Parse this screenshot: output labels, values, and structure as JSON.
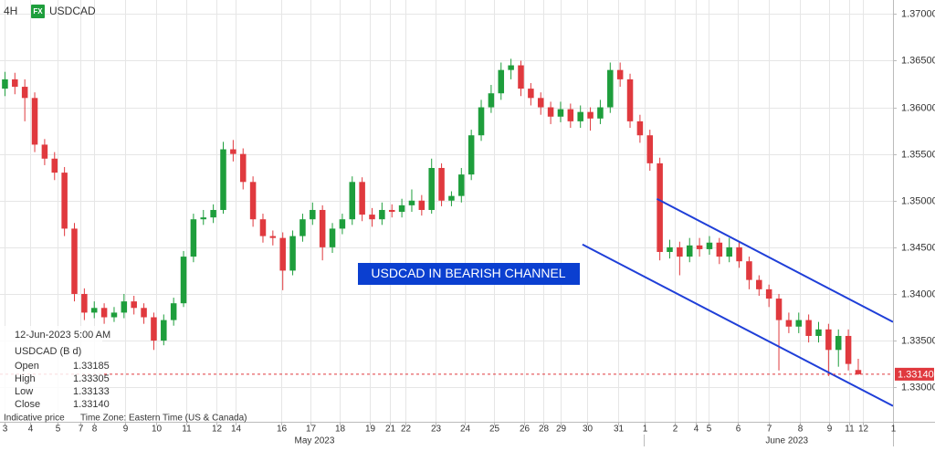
{
  "header": {
    "interval": "4H",
    "badge": "FX",
    "symbol": "USDCAD"
  },
  "info_panel": {
    "date": "12-Jun-2023 5:00 AM",
    "symbol": "USDCAD (B d)",
    "rows": [
      [
        "Open",
        "1.33185"
      ],
      [
        "High",
        "1.33305"
      ],
      [
        "Low",
        "1.33133"
      ],
      [
        "Close",
        "1.33140"
      ]
    ],
    "footer": [
      "Indicative price",
      "Time Zone: Eastern Time (US & Canada)"
    ]
  },
  "chart_data": {
    "type": "candlestick",
    "annotation": "USDCAD IN BEARISH CHANNEL",
    "up_color": "#1e9e3c",
    "down_color": "#e0393e",
    "channel_color": "#1f3fd8",
    "grid": true,
    "xlim": [
      -0.5,
      89.5
    ],
    "ylim": [
      1.3263,
      1.3715
    ],
    "xticks": [
      {
        "value": 0,
        "label": "3"
      },
      {
        "value": 2.5,
        "label": "4"
      },
      {
        "value": 5.3,
        "label": "5"
      },
      {
        "value": 7.6,
        "label": "7"
      },
      {
        "value": 9,
        "label": "8"
      },
      {
        "value": 12.1,
        "label": "9"
      },
      {
        "value": 15.2,
        "label": "10"
      },
      {
        "value": 18.3,
        "label": "11"
      },
      {
        "value": 21.3,
        "label": "12"
      },
      {
        "value": 23.2,
        "label": "14"
      },
      {
        "value": 27.8,
        "label": "16"
      },
      {
        "value": 30.8,
        "label": "17"
      },
      {
        "value": 33.7,
        "label": "18"
      },
      {
        "value": 36.8,
        "label": "19"
      },
      {
        "value": 38.8,
        "label": "21"
      },
      {
        "value": 40.4,
        "label": "22"
      },
      {
        "value": 43.4,
        "label": "23"
      },
      {
        "value": 46.3,
        "label": "24"
      },
      {
        "value": 49.3,
        "label": "25"
      },
      {
        "value": 52.3,
        "label": "26"
      },
      {
        "value": 54.3,
        "label": "28"
      },
      {
        "value": 56,
        "label": "29"
      },
      {
        "value": 58.7,
        "label": "30"
      },
      {
        "value": 61.8,
        "label": "31"
      },
      {
        "value": 64.5,
        "label": "1"
      },
      {
        "value": 67.5,
        "label": "2"
      },
      {
        "value": 69.6,
        "label": "4"
      },
      {
        "value": 70.9,
        "label": "5"
      },
      {
        "value": 73.9,
        "label": "6"
      },
      {
        "value": 77,
        "label": "7"
      },
      {
        "value": 80.1,
        "label": "8"
      },
      {
        "value": 83.1,
        "label": "9"
      },
      {
        "value": 85.1,
        "label": "11"
      },
      {
        "value": 86.5,
        "label": "12"
      },
      {
        "value": 89.5,
        "label": "1"
      }
    ],
    "month_ticks": [
      {
        "value": 31.2,
        "label": "May 2023"
      },
      {
        "value": 78.8,
        "label": "June 2023"
      }
    ],
    "yticks": [
      {
        "value": 1.33,
        "label": "1.33000"
      },
      {
        "value": 1.335,
        "label": "1.33500"
      },
      {
        "value": 1.34,
        "label": "1.34000"
      },
      {
        "value": 1.345,
        "label": "1.34500"
      },
      {
        "value": 1.35,
        "label": "1.35000"
      },
      {
        "value": 1.355,
        "label": "1.35500"
      },
      {
        "value": 1.36,
        "label": "1.36000"
      },
      {
        "value": 1.365,
        "label": "1.36500"
      },
      {
        "value": 1.37,
        "label": "1.37000"
      }
    ],
    "last_price": {
      "value": 1.3314,
      "label": "1.33140"
    },
    "channel_lines": [
      {
        "x": [
          65.7,
          89.5
        ],
        "y": [
          1.3502,
          1.337
        ]
      },
      {
        "x": [
          58.2,
          89.5
        ],
        "y": [
          1.3453,
          1.328
        ]
      }
    ],
    "open": [
      1.362,
      1.363,
      1.3622,
      1.361,
      1.356,
      1.3545,
      1.353,
      1.347,
      1.34,
      1.338,
      1.3385,
      1.3375,
      1.338,
      1.3392,
      1.3385,
      1.3375,
      1.335,
      1.3372,
      1.339,
      1.344,
      1.348,
      1.3482,
      1.349,
      1.3555,
      1.355,
      1.352,
      1.348,
      1.3462,
      1.346,
      1.3425,
      1.3462,
      1.348,
      1.349,
      1.345,
      1.347,
      1.348,
      1.352,
      1.3485,
      1.348,
      1.349,
      1.3488,
      1.3495,
      1.35,
      1.349,
      1.3535,
      1.35,
      1.3505,
      1.3528,
      1.357,
      1.36,
      1.3615,
      1.364,
      1.3645,
      1.362,
      1.361,
      1.36,
      1.359,
      1.3598,
      1.3585,
      1.3595,
      1.3588,
      1.36,
      1.364,
      1.363,
      1.3585,
      1.357,
      1.354,
      1.3445,
      1.345,
      1.344,
      1.3452,
      1.3448,
      1.3455,
      1.344,
      1.345,
      1.3435,
      1.3415,
      1.3405,
      1.3395,
      1.3372,
      1.3365,
      1.3372,
      1.3355,
      1.3362,
      1.334,
      1.3355,
      1.33185
    ],
    "high": [
      1.3638,
      1.3637,
      1.363,
      1.3616,
      1.3566,
      1.3552,
      1.3536,
      1.3476,
      1.3406,
      1.3392,
      1.339,
      1.3386,
      1.34,
      1.3398,
      1.339,
      1.338,
      1.3378,
      1.3396,
      1.3446,
      1.3486,
      1.349,
      1.3496,
      1.3563,
      1.3565,
      1.3556,
      1.3526,
      1.3486,
      1.3468,
      1.3466,
      1.3468,
      1.3486,
      1.3498,
      1.3495,
      1.3476,
      1.3486,
      1.3526,
      1.3525,
      1.3492,
      1.3498,
      1.3496,
      1.3502,
      1.3512,
      1.3506,
      1.3545,
      1.354,
      1.351,
      1.3535,
      1.3576,
      1.3608,
      1.3624,
      1.3648,
      1.3652,
      1.365,
      1.3626,
      1.3616,
      1.3606,
      1.3606,
      1.3604,
      1.3602,
      1.36,
      1.3608,
      1.3648,
      1.3648,
      1.3636,
      1.3592,
      1.3576,
      1.3546,
      1.3458,
      1.3456,
      1.346,
      1.346,
      1.3462,
      1.346,
      1.346,
      1.3456,
      1.344,
      1.342,
      1.341,
      1.34,
      1.338,
      1.338,
      1.3378,
      1.337,
      1.3368,
      1.3362,
      1.3362,
      1.33305
    ],
    "low": [
      1.3612,
      1.3614,
      1.3585,
      1.3552,
      1.3538,
      1.3522,
      1.3462,
      1.3392,
      1.3372,
      1.3374,
      1.3368,
      1.337,
      1.3374,
      1.3378,
      1.3368,
      1.334,
      1.3345,
      1.3366,
      1.3386,
      1.3434,
      1.3474,
      1.3476,
      1.3486,
      1.3542,
      1.3512,
      1.3472,
      1.3455,
      1.3452,
      1.3404,
      1.342,
      1.3456,
      1.3474,
      1.3436,
      1.3444,
      1.3464,
      1.3474,
      1.3478,
      1.3472,
      1.3474,
      1.3482,
      1.3482,
      1.3488,
      1.3484,
      1.3486,
      1.3494,
      1.3494,
      1.3498,
      1.3522,
      1.3564,
      1.3594,
      1.3608,
      1.363,
      1.3612,
      1.3602,
      1.3592,
      1.3582,
      1.3584,
      1.3578,
      1.3578,
      1.3575,
      1.3582,
      1.3594,
      1.3622,
      1.3578,
      1.3562,
      1.3532,
      1.3436,
      1.3438,
      1.342,
      1.3434,
      1.344,
      1.3442,
      1.3432,
      1.3434,
      1.3428,
      1.3405,
      1.3398,
      1.3386,
      1.3318,
      1.3358,
      1.3358,
      1.3348,
      1.3348,
      1.3312,
      1.3322,
      1.3318,
      1.33133
    ],
    "close": [
      1.363,
      1.3622,
      1.361,
      1.356,
      1.3545,
      1.353,
      1.347,
      1.34,
      1.338,
      1.3385,
      1.3375,
      1.338,
      1.3392,
      1.3385,
      1.3375,
      1.335,
      1.3372,
      1.339,
      1.344,
      1.348,
      1.3482,
      1.349,
      1.3555,
      1.355,
      1.352,
      1.348,
      1.3462,
      1.346,
      1.3425,
      1.3462,
      1.348,
      1.349,
      1.345,
      1.347,
      1.348,
      1.352,
      1.3485,
      1.348,
      1.349,
      1.3488,
      1.3495,
      1.35,
      1.349,
      1.3535,
      1.35,
      1.3505,
      1.3528,
      1.357,
      1.36,
      1.3615,
      1.364,
      1.3645,
      1.362,
      1.361,
      1.36,
      1.359,
      1.3598,
      1.3585,
      1.3595,
      1.3588,
      1.36,
      1.364,
      1.363,
      1.3585,
      1.357,
      1.354,
      1.3445,
      1.345,
      1.344,
      1.3452,
      1.3448,
      1.3455,
      1.344,
      1.345,
      1.3435,
      1.3415,
      1.3405,
      1.3395,
      1.3372,
      1.3365,
      1.3372,
      1.3355,
      1.3362,
      1.334,
      1.3355,
      1.3325,
      1.3314
    ]
  }
}
